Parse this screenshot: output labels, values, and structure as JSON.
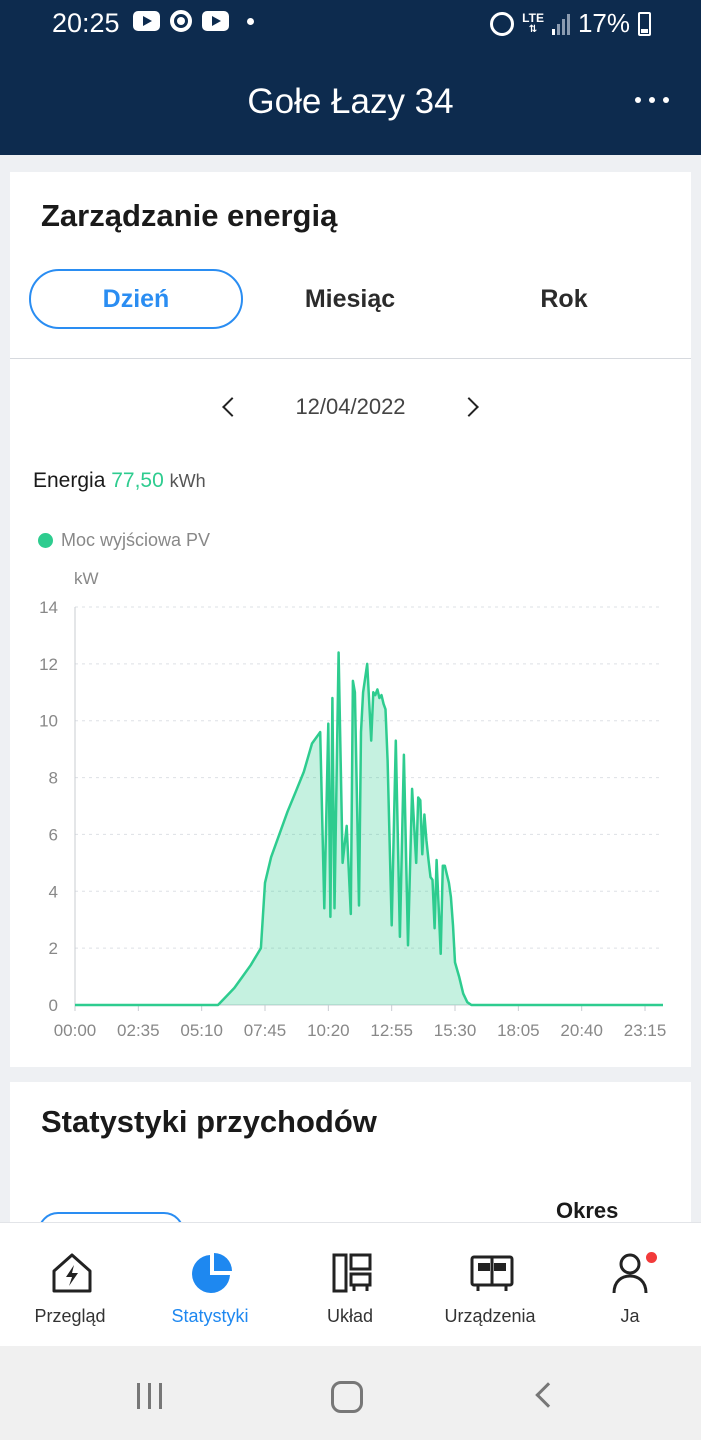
{
  "status_bar": {
    "time": "20:25",
    "network": "LTE",
    "battery": "17%"
  },
  "header": {
    "title": "Gołe Łazy 34",
    "more_icon": "more-horizontal-icon"
  },
  "energy_card": {
    "title": "Zarządzanie energią",
    "tabs": [
      {
        "label": "Dzień",
        "active": true
      },
      {
        "label": "Miesiąc",
        "active": false
      },
      {
        "label": "Rok",
        "active": false
      }
    ],
    "date": "12/04/2022",
    "energy_label": "Energia",
    "energy_value": "77,50",
    "energy_unit": "kWh"
  },
  "chart_data": {
    "type": "area",
    "series": [
      {
        "name": "Moc wyjściowa PV",
        "color": "#2ecc8f",
        "x": [
          "00:00",
          "05:10",
          "05:30",
          "05:50",
          "06:10",
          "06:30",
          "06:50",
          "07:10",
          "07:35",
          "07:45",
          "08:00",
          "08:20",
          "08:40",
          "09:00",
          "09:20",
          "09:40",
          "10:00",
          "10:10",
          "10:20",
          "10:25",
          "10:30",
          "10:35",
          "10:40",
          "10:45",
          "10:55",
          "11:05",
          "11:15",
          "11:20",
          "11:25",
          "11:35",
          "11:40",
          "11:45",
          "11:55",
          "12:05",
          "12:10",
          "12:15",
          "12:20",
          "12:25",
          "12:30",
          "12:35",
          "12:40",
          "12:45",
          "12:55",
          "13:05",
          "13:15",
          "13:25",
          "13:35",
          "13:45",
          "13:55",
          "14:00",
          "14:05",
          "14:10",
          "14:15",
          "14:20",
          "14:25",
          "14:30",
          "14:35",
          "14:40",
          "14:45",
          "14:55",
          "15:00",
          "15:05",
          "15:10",
          "15:15",
          "15:20",
          "15:25",
          "15:30",
          "15:40",
          "15:50",
          "16:00",
          "16:10",
          "16:20",
          "16:30",
          "16:40",
          "16:50",
          "17:00",
          "17:05",
          "17:10",
          "17:20",
          "17:25",
          "17:30",
          "17:40",
          "17:50",
          "18:00",
          "18:10",
          "18:20",
          "18:30",
          "18:40",
          "18:50",
          "19:00",
          "19:10",
          "19:20",
          "19:30",
          "19:40",
          "19:50",
          "20:00",
          "20:10",
          "20:30",
          "21:00",
          "22:00",
          "23:15",
          "23:59"
        ],
        "y": [
          0,
          0,
          0,
          0,
          0.3,
          0.6,
          1.0,
          1.4,
          2.0,
          4.3,
          5.2,
          6.0,
          6.8,
          7.5,
          8.2,
          9.2,
          9.6,
          3.4,
          9.9,
          3.1,
          10.8,
          3.4,
          7.8,
          12.4,
          5.0,
          6.3,
          3.2,
          11.4,
          11.0,
          3.5,
          9.6,
          11.0,
          12.0,
          9.3,
          11.0,
          10.9,
          11.1,
          10.8,
          10.9,
          10.6,
          10.4,
          8.6,
          2.8,
          9.3,
          2.4,
          8.8,
          2.1,
          7.6,
          5.0,
          7.3,
          7.2,
          5.3,
          6.7,
          5.8,
          5.1,
          4.5,
          4.4,
          2.7,
          5.1,
          1.8,
          4.9,
          4.9,
          4.6,
          4.3,
          3.8,
          2.8,
          1.5,
          1.0,
          0.4,
          0.1,
          0,
          0,
          0,
          0,
          0,
          0,
          0,
          0,
          0,
          0,
          0,
          0,
          0,
          0,
          0,
          0,
          0,
          0,
          0,
          0,
          0,
          0,
          0,
          0,
          0,
          0,
          0,
          0,
          0,
          0,
          0,
          0
        ]
      }
    ],
    "xlabel": "",
    "ylabel": "kW",
    "ylim": [
      0,
      14
    ],
    "yticks": [
      "0",
      "2",
      "4",
      "6",
      "8",
      "10",
      "12",
      "14"
    ],
    "xticks": [
      "00:00",
      "02:35",
      "05:10",
      "07:45",
      "10:20",
      "12:55",
      "15:30",
      "18:05",
      "20:40",
      "23:15"
    ],
    "grid": "horizontal dashed",
    "legend": "top-left"
  },
  "revenue_card": {
    "title": "Statystyki przychodów",
    "period_label": "Okres"
  },
  "bottom_nav": {
    "items": [
      {
        "label": "Przegląd",
        "icon": "home-bolt-icon",
        "active": false
      },
      {
        "label": "Statystyki",
        "icon": "pie-chart-icon",
        "active": true
      },
      {
        "label": "Układ",
        "icon": "layout-icon",
        "active": false
      },
      {
        "label": "Urządzenia",
        "icon": "device-icon",
        "active": false
      },
      {
        "label": "Ja",
        "icon": "user-icon",
        "active": false,
        "badge": true
      }
    ]
  },
  "colors": {
    "header_bg": "#0d2b4e",
    "accent_blue": "#2a8df2",
    "pv_green": "#2ecc8f"
  }
}
